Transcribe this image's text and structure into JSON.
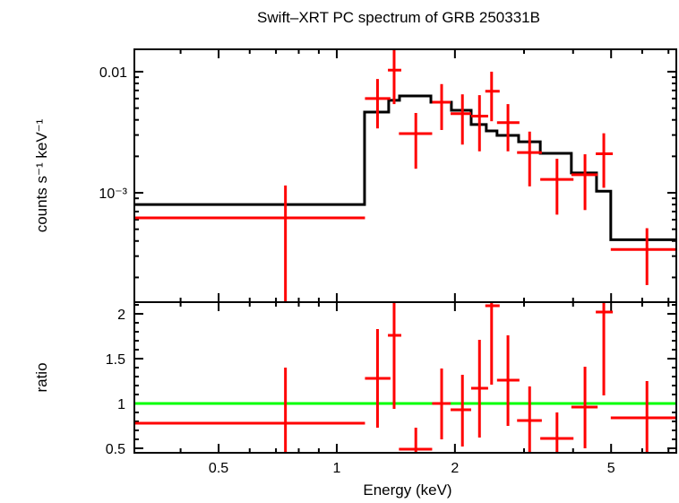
{
  "chart_data": [
    {
      "panel": "spectrum",
      "type": "scatter",
      "title": "Swift–XRT PC spectrum of GRB 250331B",
      "ylabel": "counts s⁻¹ keV⁻¹",
      "xscale": "log",
      "yscale": "log",
      "xlim": [
        0.305,
        7.33
      ],
      "ylim": [
        0.000125,
        0.0153
      ],
      "yticks": [
        {
          "value": 0.01,
          "label": "0.01"
        },
        {
          "value": 0.001,
          "label": "10⁻³"
        }
      ],
      "grid": false,
      "colors": {
        "data": "#ff0000",
        "model": "#000000"
      },
      "data": [
        {
          "x": 0.74,
          "xlo": 0.305,
          "xhi": 1.18,
          "y": 0.00062,
          "ylo": 0.00012,
          "yhi": 0.00115
        },
        {
          "x": 1.27,
          "xlo": 1.18,
          "xhi": 1.37,
          "y": 0.006,
          "ylo": 0.0034,
          "yhi": 0.0087
        },
        {
          "x": 1.4,
          "xlo": 1.35,
          "xhi": 1.46,
          "y": 0.0103,
          "ylo": 0.0054,
          "yhi": 0.0153
        },
        {
          "x": 1.59,
          "xlo": 1.44,
          "xhi": 1.75,
          "y": 0.00308,
          "ylo": 0.00158,
          "yhi": 0.00456
        },
        {
          "x": 1.85,
          "xlo": 1.75,
          "xhi": 1.95,
          "y": 0.0056,
          "ylo": 0.0033,
          "yhi": 0.0079
        },
        {
          "x": 2.09,
          "xlo": 1.95,
          "xhi": 2.2,
          "y": 0.0045,
          "ylo": 0.0025,
          "yhi": 0.0065
        },
        {
          "x": 2.31,
          "xlo": 2.2,
          "xhi": 2.43,
          "y": 0.0043,
          "ylo": 0.0022,
          "yhi": 0.0064
        },
        {
          "x": 2.48,
          "xlo": 2.39,
          "xhi": 2.6,
          "y": 0.0069,
          "ylo": 0.0039,
          "yhi": 0.01
        },
        {
          "x": 2.73,
          "xlo": 2.56,
          "xhi": 2.92,
          "y": 0.0038,
          "ylo": 0.0022,
          "yhi": 0.0054
        },
        {
          "x": 3.1,
          "xlo": 2.88,
          "xhi": 3.33,
          "y": 0.00215,
          "ylo": 0.00113,
          "yhi": 0.0032
        },
        {
          "x": 3.64,
          "xlo": 3.3,
          "xhi": 4.01,
          "y": 0.00129,
          "ylo": 0.00066,
          "yhi": 0.00191
        },
        {
          "x": 4.29,
          "xlo": 3.96,
          "xhi": 4.62,
          "y": 0.00141,
          "ylo": 0.00072,
          "yhi": 0.00208
        },
        {
          "x": 4.79,
          "xlo": 4.57,
          "xhi": 5.05,
          "y": 0.0021,
          "ylo": 0.0011,
          "yhi": 0.0031
        },
        {
          "x": 6.17,
          "xlo": 4.99,
          "xhi": 7.4,
          "y": 0.00034,
          "ylo": 0.000173,
          "yhi": 0.00051
        }
      ],
      "model_steps": {
        "edges": [
          0.305,
          1.177,
          1.356,
          1.445,
          1.737,
          1.959,
          2.2,
          2.404,
          2.56,
          2.906,
          3.3,
          3.96,
          4.59,
          4.99,
          7.33
        ],
        "values": [
          0.0008,
          0.00464,
          0.0058,
          0.0063,
          0.0056,
          0.0048,
          0.00366,
          0.00324,
          0.00298,
          0.00264,
          0.00212,
          0.00146,
          0.00103,
          0.00041
        ]
      }
    },
    {
      "panel": "ratio",
      "type": "scatter",
      "xlabel": "Energy (keV)",
      "ylabel": "ratio",
      "xscale": "log",
      "xlim": [
        0.305,
        7.33
      ],
      "ylim": [
        0.45,
        2.13
      ],
      "xticks": [
        {
          "value": 0.5,
          "label": "0.5"
        },
        {
          "value": 1,
          "label": "1"
        },
        {
          "value": 2,
          "label": "2"
        },
        {
          "value": 5,
          "label": "5"
        }
      ],
      "yticks": [
        {
          "value": 0.5,
          "label": "0.5"
        },
        {
          "value": 1,
          "label": "1"
        },
        {
          "value": 1.5,
          "label": "1.5"
        },
        {
          "value": 2,
          "label": "2"
        }
      ],
      "reference_line": 1,
      "grid": false,
      "colors": {
        "data": "#ff0000",
        "reference": "#00ff00"
      },
      "data": [
        {
          "x": 0.74,
          "xlo": 0.305,
          "xhi": 1.18,
          "y": 0.78,
          "ylo": 0.4,
          "yhi": 1.4
        },
        {
          "x": 1.27,
          "xlo": 1.18,
          "xhi": 1.37,
          "y": 1.28,
          "ylo": 0.73,
          "yhi": 1.83
        },
        {
          "x": 1.4,
          "xlo": 1.35,
          "xhi": 1.46,
          "y": 1.76,
          "ylo": 0.94,
          "yhi": 2.2
        },
        {
          "x": 1.59,
          "xlo": 1.44,
          "xhi": 1.75,
          "y": 0.49,
          "ylo": 0.4,
          "yhi": 0.73
        },
        {
          "x": 1.85,
          "xlo": 1.75,
          "xhi": 1.95,
          "y": 1.0,
          "ylo": 0.6,
          "yhi": 1.39
        },
        {
          "x": 2.09,
          "xlo": 1.95,
          "xhi": 2.2,
          "y": 0.93,
          "ylo": 0.52,
          "yhi": 1.32
        },
        {
          "x": 2.31,
          "xlo": 2.2,
          "xhi": 2.43,
          "y": 1.17,
          "ylo": 0.62,
          "yhi": 1.71
        },
        {
          "x": 2.48,
          "xlo": 2.39,
          "xhi": 2.6,
          "y": 2.09,
          "ylo": 1.21,
          "yhi": 2.2
        },
        {
          "x": 2.73,
          "xlo": 2.56,
          "xhi": 2.92,
          "y": 1.26,
          "ylo": 0.75,
          "yhi": 1.76
        },
        {
          "x": 3.1,
          "xlo": 2.88,
          "xhi": 3.33,
          "y": 0.81,
          "ylo": 0.4,
          "yhi": 1.19
        },
        {
          "x": 3.64,
          "xlo": 3.3,
          "xhi": 4.01,
          "y": 0.61,
          "ylo": 0.4,
          "yhi": 0.9
        },
        {
          "x": 4.29,
          "xlo": 3.96,
          "xhi": 4.62,
          "y": 0.96,
          "ylo": 0.5,
          "yhi": 1.41
        },
        {
          "x": 4.79,
          "xlo": 4.57,
          "xhi": 5.05,
          "y": 2.02,
          "ylo": 1.09,
          "yhi": 2.2
        },
        {
          "x": 6.17,
          "xlo": 4.99,
          "xhi": 7.4,
          "y": 0.84,
          "ylo": 0.4,
          "yhi": 1.25
        }
      ]
    }
  ]
}
